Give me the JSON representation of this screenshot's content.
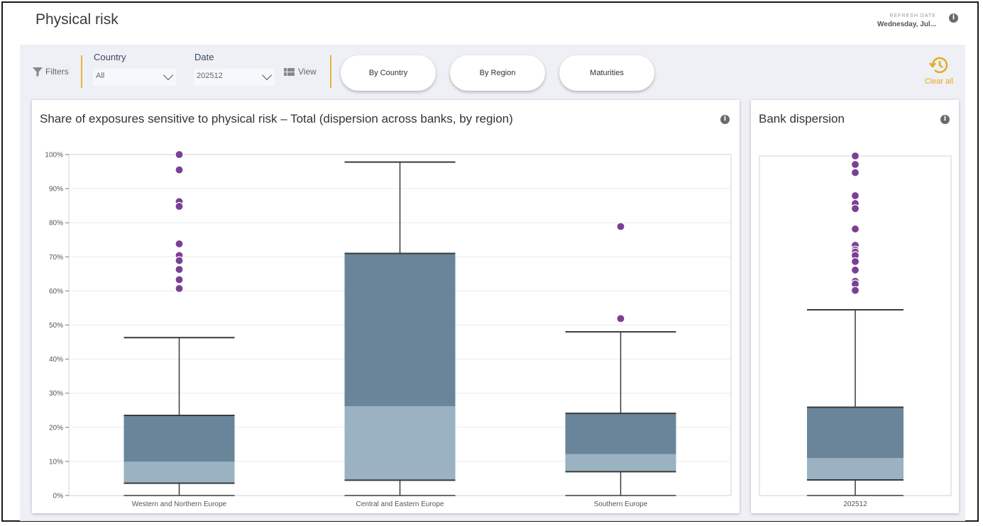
{
  "header": {
    "title": "Physical risk",
    "refresh_label": "REFRESH DATE",
    "refresh_value": "Wednesday, Jul..."
  },
  "toolbar": {
    "filters_label": "Filters",
    "country_label": "Country",
    "country_value": "All",
    "date_label": "Date",
    "date_value": "202512",
    "view_label": "View",
    "tabs": [
      "By Country",
      "By Region",
      "Maturities"
    ],
    "clear_label": "Clear all"
  },
  "colors": {
    "box_upper": "#6a8599",
    "box_lower": "#9ab2c2",
    "outlier": "#7b3f94",
    "accent": "#e5b53a"
  },
  "main_chart": {
    "title": "Share of exposures sensitive to physical risk – Total (dispersion across banks, by region)"
  },
  "side_chart": {
    "title": "Bank dispersion"
  },
  "chart_data": [
    {
      "type": "boxplot",
      "title": "Share of exposures sensitive to physical risk – Total (dispersion across banks, by region)",
      "categories": [
        "Western and Northern Europe",
        "Central and Eastern Europe",
        "Southern Europe"
      ],
      "ylim": [
        0,
        100
      ],
      "yticks": [
        "0%",
        "10%",
        "20%",
        "30%",
        "40%",
        "50%",
        "60%",
        "70%",
        "80%",
        "90%",
        "100%"
      ],
      "boxes": [
        {
          "min": 0,
          "q1": 3.6,
          "median": 9.9,
          "q3": 23.5,
          "max": 46.3,
          "outliers": [
            100,
            95.5,
            86.2,
            84.8,
            73.8,
            70.4,
            68.9,
            66.3,
            63.3,
            60.7
          ]
        },
        {
          "min": 0,
          "q1": 4.5,
          "median": 26.2,
          "q3": 71.0,
          "max": 97.8,
          "outliers": []
        },
        {
          "min": 0,
          "q1": 7.0,
          "median": 12.1,
          "q3": 24.1,
          "max": 48.0,
          "outliers": [
            78.9,
            51.9
          ]
        }
      ],
      "grid": true
    },
    {
      "type": "boxplot",
      "title": "Bank dispersion",
      "categories": [
        "202512"
      ],
      "ylim": [
        0,
        100
      ],
      "boxes": [
        {
          "min": 0,
          "q1": 4.6,
          "median": 11.0,
          "q3": 26.0,
          "max": 54.7,
          "outliers": [
            100,
            97.5,
            95.1,
            88.3,
            86.0,
            84.5,
            78.5,
            73.7,
            72.3,
            71.7,
            70.7,
            68.9,
            66.4,
            63.1,
            62.3,
            60.4
          ]
        }
      ],
      "grid": false
    }
  ]
}
